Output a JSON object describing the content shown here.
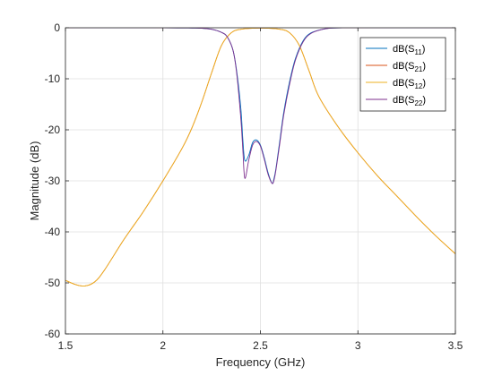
{
  "chart_data": {
    "type": "line",
    "title": "",
    "xlabel": "Frequency (GHz)",
    "ylabel": "Magnitude (dB)",
    "xlim": [
      1.5,
      3.5
    ],
    "ylim": [
      -60,
      0
    ],
    "xticks": [
      1.5,
      2,
      2.5,
      3,
      3.5
    ],
    "xtick_labels": [
      "1.5",
      "2",
      "2.5",
      "3",
      "3.5"
    ],
    "yticks": [
      0,
      -10,
      -20,
      -30,
      -40,
      -50,
      -60
    ],
    "ytick_labels": [
      "0",
      "-10",
      "-20",
      "-30",
      "-40",
      "-50",
      "-60"
    ],
    "grid": true,
    "legend_position": "top-right",
    "series": [
      {
        "name": "dB(S11)",
        "base": "dB(S",
        "sub": "11",
        "color": "#0072BD",
        "x": [
          1.5,
          2.0,
          2.15,
          2.2,
          2.25,
          2.3,
          2.33,
          2.36,
          2.38,
          2.4,
          2.41,
          2.42,
          2.44,
          2.46,
          2.48,
          2.5,
          2.52,
          2.54,
          2.56,
          2.57,
          2.58,
          2.6,
          2.62,
          2.65,
          2.68,
          2.72,
          2.76,
          2.82,
          2.87,
          3.0,
          3.5
        ],
        "y": [
          0,
          0,
          -0.05,
          -0.1,
          -0.3,
          -0.9,
          -1.8,
          -4.5,
          -9.0,
          -16.0,
          -22.0,
          -26.0,
          -25.0,
          -22.5,
          -22.0,
          -23.0,
          -25.5,
          -28.5,
          -30.5,
          -29.5,
          -27.5,
          -22.0,
          -16.5,
          -10.5,
          -6.0,
          -2.5,
          -1.0,
          -0.3,
          -0.05,
          0,
          0
        ]
      },
      {
        "name": "dB(S21)",
        "base": "dB(S",
        "sub": "21",
        "color": "#D95319",
        "x": [
          1.5,
          1.55,
          1.6,
          1.65,
          1.7,
          1.8,
          1.9,
          2.0,
          2.1,
          2.15,
          2.2,
          2.25,
          2.3,
          2.35,
          2.4,
          2.5,
          2.6,
          2.65,
          2.7,
          2.75,
          2.8,
          2.9,
          3.0,
          3.1,
          3.2,
          3.3,
          3.4,
          3.5
        ],
        "y": [
          -49.5,
          -50.3,
          -50.6,
          -49.8,
          -47.5,
          -41.5,
          -36.0,
          -30.0,
          -23.5,
          -19.5,
          -14.5,
          -8.8,
          -3.5,
          -1.0,
          -0.3,
          -0.05,
          -0.3,
          -1.0,
          -3.5,
          -8.5,
          -13.5,
          -19.5,
          -24.5,
          -29.0,
          -33.0,
          -37.0,
          -40.8,
          -44.3
        ]
      },
      {
        "name": "dB(S12)",
        "base": "dB(S",
        "sub": "12",
        "color": "#EDB120",
        "x": [
          1.5,
          1.55,
          1.6,
          1.65,
          1.7,
          1.8,
          1.9,
          2.0,
          2.1,
          2.15,
          2.2,
          2.25,
          2.3,
          2.35,
          2.4,
          2.5,
          2.6,
          2.65,
          2.7,
          2.75,
          2.8,
          2.9,
          3.0,
          3.1,
          3.2,
          3.3,
          3.4,
          3.5
        ],
        "y": [
          -49.5,
          -50.3,
          -50.6,
          -49.8,
          -47.5,
          -41.5,
          -36.0,
          -30.0,
          -23.5,
          -19.5,
          -14.5,
          -8.8,
          -3.5,
          -1.0,
          -0.3,
          -0.05,
          -0.3,
          -1.0,
          -3.5,
          -8.5,
          -13.5,
          -19.5,
          -24.5,
          -29.0,
          -33.0,
          -37.0,
          -40.8,
          -44.3
        ]
      },
      {
        "name": "dB(S22)",
        "base": "dB(S",
        "sub": "22",
        "color": "#7E2F8E",
        "x": [
          1.5,
          2.0,
          2.15,
          2.2,
          2.25,
          2.3,
          2.33,
          2.36,
          2.38,
          2.4,
          2.41,
          2.42,
          2.44,
          2.46,
          2.48,
          2.5,
          2.52,
          2.54,
          2.56,
          2.57,
          2.58,
          2.6,
          2.62,
          2.65,
          2.68,
          2.72,
          2.76,
          2.82,
          2.87,
          3.0,
          3.5
        ],
        "y": [
          0,
          0,
          -0.05,
          -0.1,
          -0.3,
          -0.9,
          -1.8,
          -4.5,
          -9.5,
          -18.0,
          -24.0,
          -29.5,
          -26.0,
          -23.0,
          -22.3,
          -23.2,
          -25.8,
          -28.8,
          -30.5,
          -29.8,
          -27.8,
          -22.5,
          -17.0,
          -11.0,
          -6.3,
          -2.7,
          -1.1,
          -0.3,
          -0.05,
          0,
          0
        ]
      }
    ]
  }
}
